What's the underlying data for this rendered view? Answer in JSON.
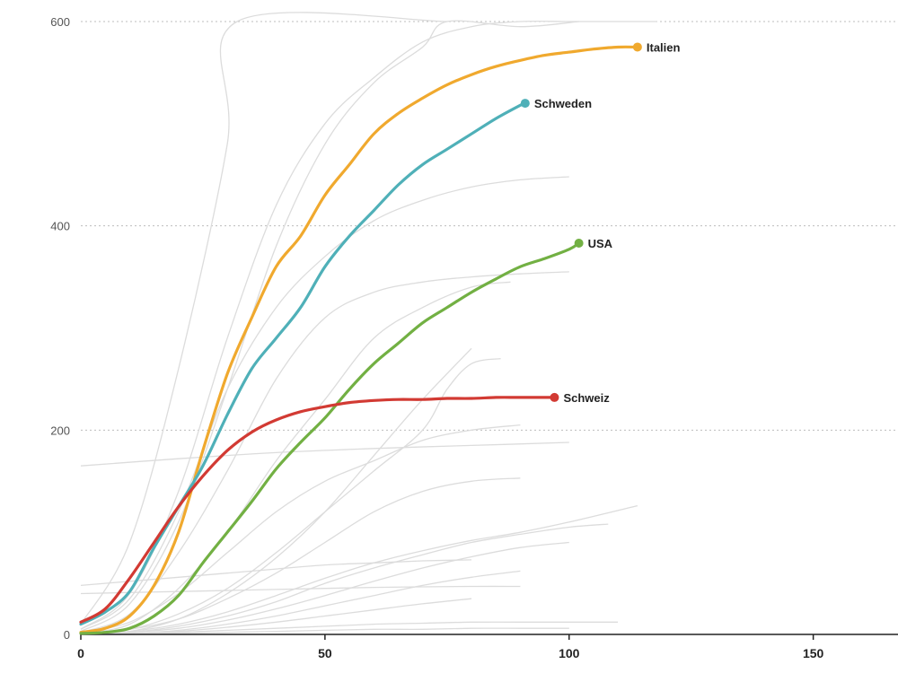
{
  "chart_data": {
    "type": "line",
    "title": "",
    "xlabel": "",
    "ylabel": "",
    "xlim": [
      0,
      160
    ],
    "ylim": [
      0,
      600
    ],
    "x_ticks": [
      "0",
      "50",
      "100",
      "150"
    ],
    "y_ticks": [
      "0",
      "200",
      "400",
      "600"
    ],
    "grid": "horizontal dashed",
    "series": [
      {
        "name": "Italien",
        "color": "#f0a92e",
        "x": [
          0,
          5,
          10,
          15,
          20,
          25,
          30,
          35,
          40,
          45,
          50,
          55,
          60,
          65,
          70,
          75,
          80,
          85,
          90,
          95,
          100,
          105,
          110,
          114
        ],
        "y": [
          2,
          6,
          18,
          48,
          100,
          180,
          255,
          310,
          360,
          390,
          430,
          460,
          490,
          510,
          525,
          538,
          548,
          556,
          562,
          567,
          570,
          573,
          575,
          575
        ]
      },
      {
        "name": "Schweden",
        "color": "#4fb0b8",
        "x": [
          0,
          5,
          10,
          15,
          20,
          25,
          30,
          35,
          40,
          45,
          50,
          55,
          60,
          65,
          70,
          75,
          80,
          85,
          90,
          91
        ],
        "y": [
          10,
          22,
          42,
          85,
          125,
          165,
          215,
          260,
          290,
          320,
          360,
          390,
          415,
          440,
          460,
          475,
          490,
          505,
          518,
          520
        ]
      },
      {
        "name": "USA",
        "color": "#72b043",
        "x": [
          0,
          5,
          10,
          15,
          20,
          25,
          30,
          35,
          40,
          45,
          50,
          55,
          60,
          65,
          70,
          75,
          80,
          85,
          90,
          95,
          100,
          102
        ],
        "y": [
          1,
          2,
          6,
          18,
          38,
          70,
          100,
          130,
          162,
          188,
          212,
          240,
          265,
          285,
          305,
          320,
          335,
          348,
          360,
          368,
          377,
          383
        ]
      },
      {
        "name": "Schweiz",
        "color": "#d23a33",
        "x": [
          0,
          5,
          10,
          15,
          20,
          25,
          30,
          35,
          40,
          45,
          50,
          55,
          60,
          65,
          70,
          75,
          80,
          85,
          90,
          97
        ],
        "y": [
          12,
          25,
          55,
          90,
          125,
          155,
          180,
          198,
          210,
          218,
          223,
          227,
          229,
          230,
          230,
          231,
          231,
          232,
          232,
          232
        ]
      }
    ],
    "background_series": [
      {
        "x": [
          0,
          20,
          40,
          60,
          80,
          100
        ],
        "y": [
          165,
          172,
          178,
          182,
          185,
          188
        ]
      },
      {
        "x": [
          0,
          10,
          20,
          30,
          32,
          75
        ],
        "y": [
          10,
          90,
          260,
          480,
          600,
          600
        ]
      },
      {
        "x": [
          0,
          10,
          20,
          30,
          40,
          50,
          60,
          70,
          80,
          90,
          100,
          110,
          118
        ],
        "y": [
          5,
          40,
          140,
          290,
          420,
          500,
          545,
          580,
          595,
          600,
          600,
          600,
          600
        ]
      },
      {
        "x": [
          0,
          10,
          20,
          30,
          40,
          50,
          60,
          70,
          75,
          90,
          102
        ],
        "y": [
          3,
          30,
          110,
          240,
          380,
          480,
          540,
          575,
          600,
          595,
          600
        ]
      },
      {
        "x": [
          0,
          10,
          20,
          30,
          40,
          50,
          60,
          70,
          80,
          90,
          100
        ],
        "y": [
          5,
          35,
          120,
          240,
          320,
          370,
          405,
          425,
          438,
          445,
          448
        ]
      },
      {
        "x": [
          0,
          10,
          20,
          30,
          40,
          50,
          60,
          70,
          80,
          90,
          100
        ],
        "y": [
          2,
          20,
          80,
          160,
          250,
          310,
          335,
          345,
          350,
          353,
          355
        ]
      },
      {
        "x": [
          0,
          10,
          20,
          30,
          40,
          50,
          60,
          70,
          80,
          88
        ],
        "y": [
          1,
          10,
          45,
          100,
          170,
          230,
          290,
          320,
          340,
          345
        ]
      },
      {
        "x": [
          0,
          10,
          20,
          30,
          40,
          50,
          60,
          70,
          75,
          80,
          86
        ],
        "y": [
          1,
          5,
          20,
          45,
          80,
          120,
          160,
          200,
          240,
          265,
          270
        ]
      },
      {
        "x": [
          0,
          10,
          20,
          30,
          40,
          50,
          60,
          70,
          80,
          90
        ],
        "y": [
          2,
          12,
          40,
          80,
          120,
          150,
          170,
          190,
          200,
          205
        ]
      },
      {
        "x": [
          0,
          10,
          20,
          30,
          40,
          50,
          60,
          70,
          80,
          90
        ],
        "y": [
          0,
          5,
          15,
          35,
          60,
          90,
          120,
          140,
          150,
          153
        ]
      },
      {
        "x": [
          0,
          10,
          20,
          30,
          40,
          50,
          60,
          70,
          80,
          90,
          100,
          114
        ],
        "y": [
          0,
          3,
          10,
          22,
          38,
          55,
          70,
          82,
          92,
          100,
          110,
          126
        ]
      },
      {
        "x": [
          0,
          10,
          20,
          30,
          40,
          50,
          60,
          70,
          80,
          90,
          100,
          108
        ],
        "y": [
          0,
          2,
          8,
          18,
          32,
          50,
          65,
          78,
          90,
          98,
          105,
          108
        ]
      },
      {
        "x": [
          0,
          10,
          20,
          30,
          40,
          50,
          60,
          70,
          80,
          90,
          100
        ],
        "y": [
          0,
          2,
          6,
          14,
          25,
          38,
          52,
          65,
          76,
          85,
          90
        ]
      },
      {
        "x": [
          0,
          10,
          20,
          30,
          40,
          50,
          60,
          70,
          80,
          90
        ],
        "y": [
          0,
          1,
          4,
          10,
          18,
          28,
          38,
          48,
          56,
          62
        ]
      },
      {
        "x": [
          0,
          10,
          20,
          30,
          40,
          50,
          60,
          70,
          80
        ],
        "y": [
          0,
          1,
          3,
          7,
          12,
          18,
          24,
          30,
          35
        ]
      },
      {
        "x": [
          0,
          10,
          20,
          30,
          40,
          50,
          60,
          70,
          80,
          90,
          100,
          110
        ],
        "y": [
          0,
          0,
          2,
          4,
          6,
          8,
          10,
          11,
          12,
          12,
          12,
          12
        ]
      },
      {
        "x": [
          0,
          10,
          20,
          30,
          40,
          50,
          60,
          70,
          80,
          90,
          100
        ],
        "y": [
          0,
          0,
          1,
          2,
          3,
          4,
          5,
          5,
          6,
          6,
          6
        ]
      },
      {
        "x": [
          0,
          10,
          20,
          30,
          40,
          50,
          60,
          70,
          80
        ],
        "y": [
          48,
          52,
          56,
          60,
          64,
          68,
          70,
          72,
          73
        ]
      },
      {
        "x": [
          0,
          20,
          40,
          60,
          80,
          90
        ],
        "y": [
          40,
          42,
          44,
          46,
          47,
          47
        ]
      },
      {
        "x": [
          0,
          10,
          20,
          30,
          40,
          50,
          60,
          70,
          80
        ],
        "y": [
          0,
          3,
          15,
          40,
          75,
          120,
          175,
          230,
          280
        ]
      }
    ]
  }
}
